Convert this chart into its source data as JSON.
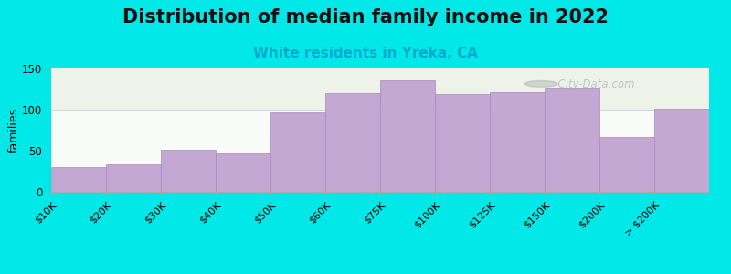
{
  "title": "Distribution of median family income in 2022",
  "subtitle": "White residents in Yreka, CA",
  "ylabel": "families",
  "categories": [
    "$10K",
    "$20K",
    "$30K",
    "$40K",
    "$50K",
    "$60K",
    "$75K",
    "$100K",
    "$125K",
    "$150K",
    "$200K",
    "> $200K"
  ],
  "values": [
    30,
    33,
    51,
    47,
    97,
    120,
    136,
    119,
    121,
    127,
    67,
    101
  ],
  "bar_color": "#c4a8d4",
  "bar_edge_color": "#a888bc",
  "background_color": "#00e8e8",
  "plot_bg_color": "#ffffff",
  "ylim": [
    0,
    150
  ],
  "yticks": [
    0,
    50,
    100,
    150
  ],
  "title_fontsize": 15,
  "subtitle_fontsize": 11,
  "subtitle_color": "#00aacc",
  "ylabel_fontsize": 9,
  "watermark": "  City-Data.com",
  "watermark_color": "#b0b8b0"
}
